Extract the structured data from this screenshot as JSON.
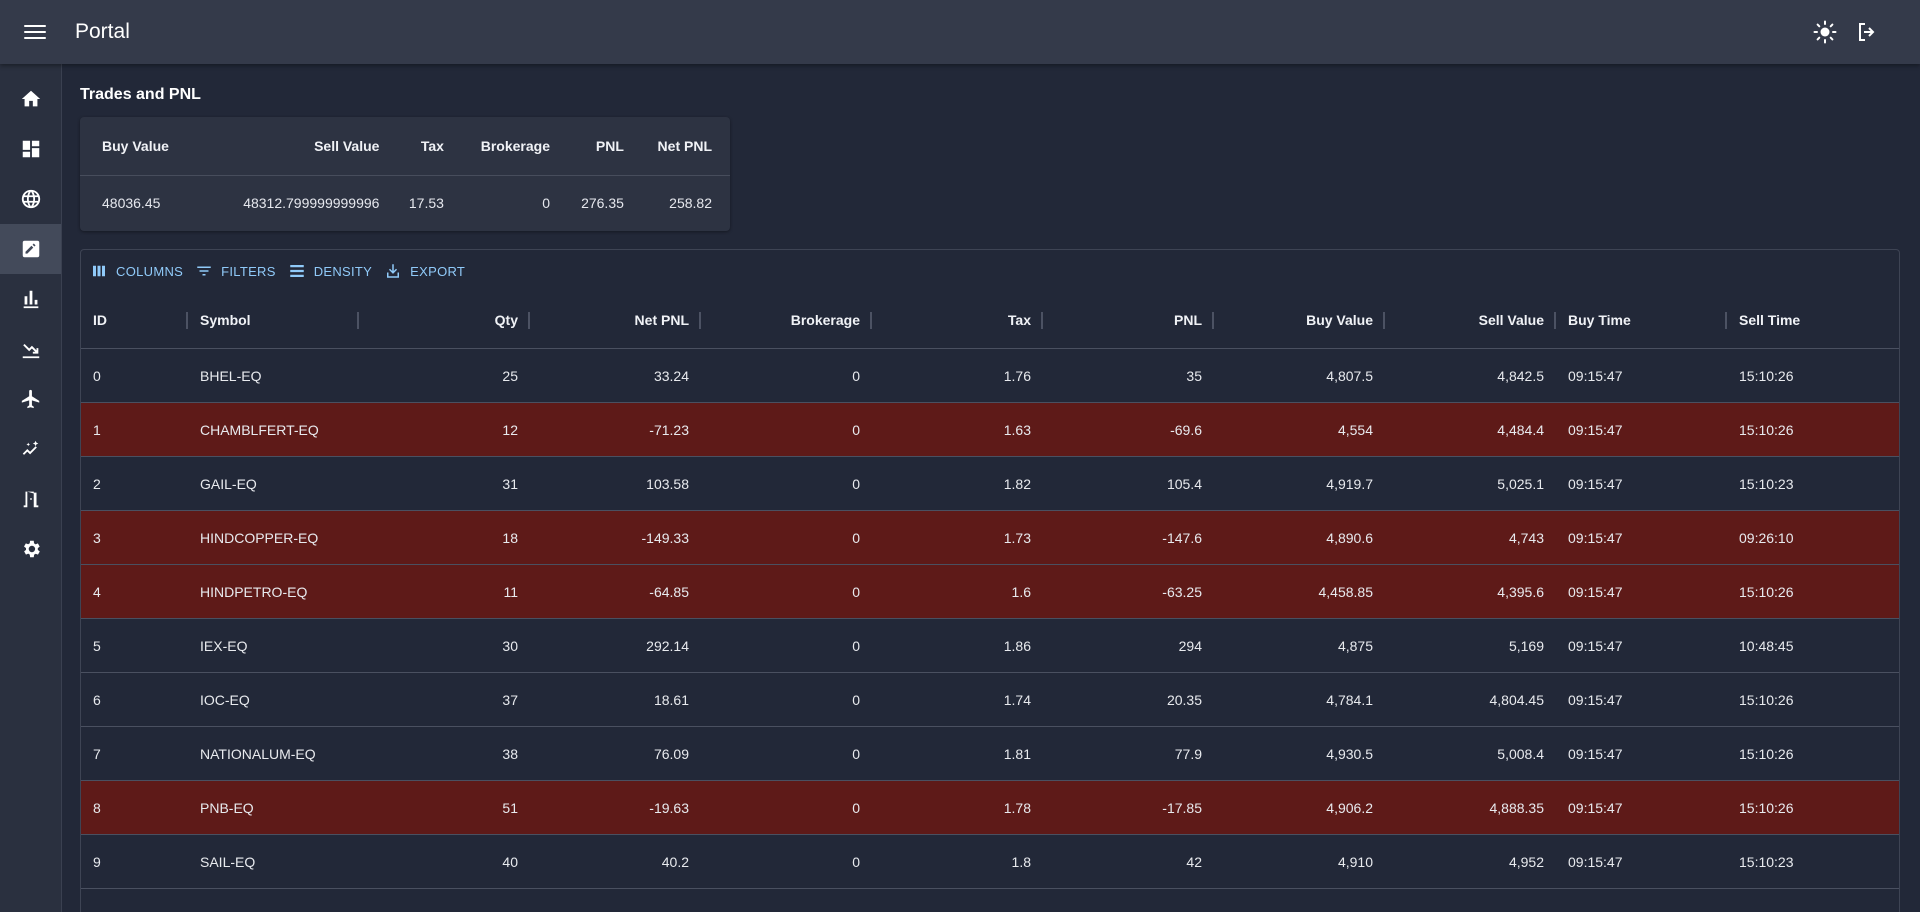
{
  "header": {
    "title": "Portal",
    "theme_icon": "sun-icon",
    "logout_icon": "logout-icon"
  },
  "sidebar": {
    "items": [
      {
        "name": "home",
        "icon": "home-icon"
      },
      {
        "name": "dashboard",
        "icon": "dashboard-icon"
      },
      {
        "name": "globe",
        "icon": "globe-icon"
      },
      {
        "name": "trades",
        "icon": "edit-note-icon",
        "active": true
      },
      {
        "name": "bar-chart",
        "icon": "bar-chart-icon"
      },
      {
        "name": "trend-down",
        "icon": "trend-down-icon"
      },
      {
        "name": "flight",
        "icon": "airplane-icon"
      },
      {
        "name": "insights",
        "icon": "insights-icon"
      },
      {
        "name": "exit",
        "icon": "door-icon"
      },
      {
        "name": "settings",
        "icon": "gear-icon"
      }
    ]
  },
  "page": {
    "title": "Trades and PNL"
  },
  "summary": {
    "headers": [
      "Buy Value",
      "Sell Value",
      "Tax",
      "Brokerage",
      "PNL",
      "Net PNL"
    ],
    "values": [
      "48036.45",
      "48312.799999999996",
      "17.53",
      "0",
      "276.35",
      "258.82"
    ]
  },
  "toolbar": {
    "columns": "COLUMNS",
    "filters": "FILTERS",
    "density": "DENSITY",
    "export": "EXPORT"
  },
  "grid": {
    "headers": [
      "ID",
      "Symbol",
      "Qty",
      "Net PNL",
      "Brokerage",
      "Tax",
      "PNL",
      "Buy Value",
      "Sell Value",
      "Buy Time",
      "Sell Time"
    ],
    "rows": [
      [
        "0",
        "BHEL-EQ",
        "25",
        "33.24",
        "0",
        "1.76",
        "35",
        "4,807.5",
        "4,842.5",
        "09:15:47",
        "15:10:26"
      ],
      [
        "1",
        "CHAMBLFERT-EQ",
        "12",
        "-71.23",
        "0",
        "1.63",
        "-69.6",
        "4,554",
        "4,484.4",
        "09:15:47",
        "15:10:26"
      ],
      [
        "2",
        "GAIL-EQ",
        "31",
        "103.58",
        "0",
        "1.82",
        "105.4",
        "4,919.7",
        "5,025.1",
        "09:15:47",
        "15:10:23"
      ],
      [
        "3",
        "HINDCOPPER-EQ",
        "18",
        "-149.33",
        "0",
        "1.73",
        "-147.6",
        "4,890.6",
        "4,743",
        "09:15:47",
        "09:26:10"
      ],
      [
        "4",
        "HINDPETRO-EQ",
        "11",
        "-64.85",
        "0",
        "1.6",
        "-63.25",
        "4,458.85",
        "4,395.6",
        "09:15:47",
        "15:10:26"
      ],
      [
        "5",
        "IEX-EQ",
        "30",
        "292.14",
        "0",
        "1.86",
        "294",
        "4,875",
        "5,169",
        "09:15:47",
        "10:48:45"
      ],
      [
        "6",
        "IOC-EQ",
        "37",
        "18.61",
        "0",
        "1.74",
        "20.35",
        "4,784.1",
        "4,804.45",
        "09:15:47",
        "15:10:26"
      ],
      [
        "7",
        "NATIONALUM-EQ",
        "38",
        "76.09",
        "0",
        "1.81",
        "77.9",
        "4,930.5",
        "5,008.4",
        "09:15:47",
        "15:10:26"
      ],
      [
        "8",
        "PNB-EQ",
        "51",
        "-19.63",
        "0",
        "1.78",
        "-17.85",
        "4,906.2",
        "4,888.35",
        "09:15:47",
        "15:10:26"
      ],
      [
        "9",
        "SAIL-EQ",
        "40",
        "40.2",
        "0",
        "1.8",
        "42",
        "4,910",
        "4,952",
        "09:15:47",
        "15:10:23"
      ]
    ],
    "loss_row_color": "#5e1a18"
  },
  "colors": {
    "appbar": "#343a4a",
    "background": "#222838",
    "accent": "#90caf9"
  }
}
